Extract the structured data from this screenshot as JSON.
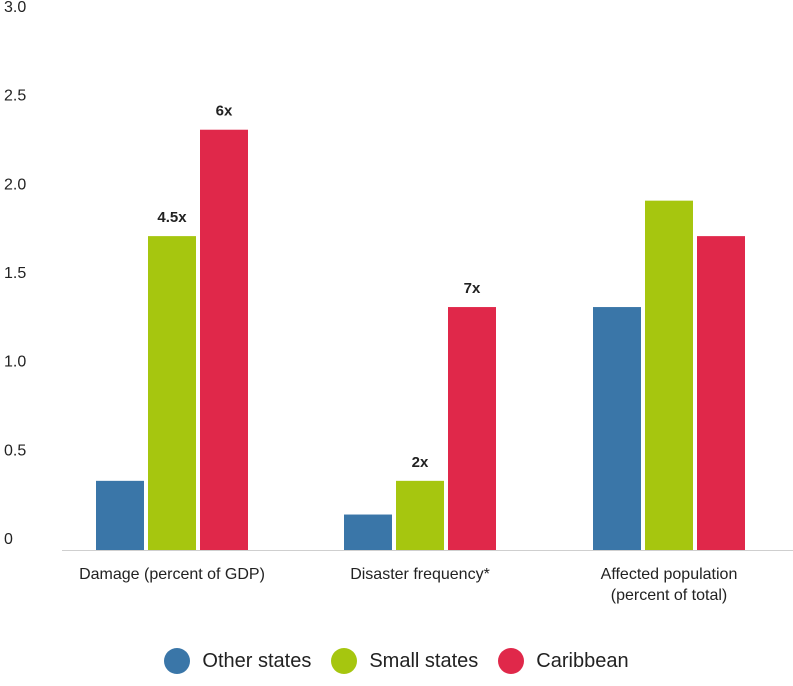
{
  "chart_data": {
    "type": "bar",
    "title": "",
    "xlabel": "",
    "ylabel": "",
    "ylim": [
      0,
      3.0
    ],
    "yticks": [
      "0",
      "0.5",
      "1.0",
      "1.5",
      "2.0",
      "2.5",
      "3.0"
    ],
    "ytick_values": [
      0,
      0.5,
      1.0,
      1.5,
      2.0,
      2.5,
      3.0
    ],
    "grid": false,
    "legend_position": "bottom",
    "categories": [
      [
        "Damage (percent of GDP)"
      ],
      [
        "Disaster frequency*"
      ],
      [
        "Affected population",
        "(percent of total)"
      ]
    ],
    "series": [
      {
        "name": "Other states",
        "color": "#3a76a8",
        "values": [
          0.39,
          0.2,
          1.37
        ]
      },
      {
        "name": "Small states",
        "color": "#a6c60f",
        "values": [
          1.77,
          0.39,
          1.97
        ]
      },
      {
        "name": "Caribbean",
        "color": "#e0284a",
        "values": [
          2.37,
          1.37,
          1.77
        ]
      }
    ],
    "annotations": [
      {
        "series": 1,
        "category": 0,
        "text": "4.5x"
      },
      {
        "series": 2,
        "category": 0,
        "text": "6x"
      },
      {
        "series": 1,
        "category": 1,
        "text": "2x"
      },
      {
        "series": 2,
        "category": 1,
        "text": "7x"
      }
    ]
  }
}
